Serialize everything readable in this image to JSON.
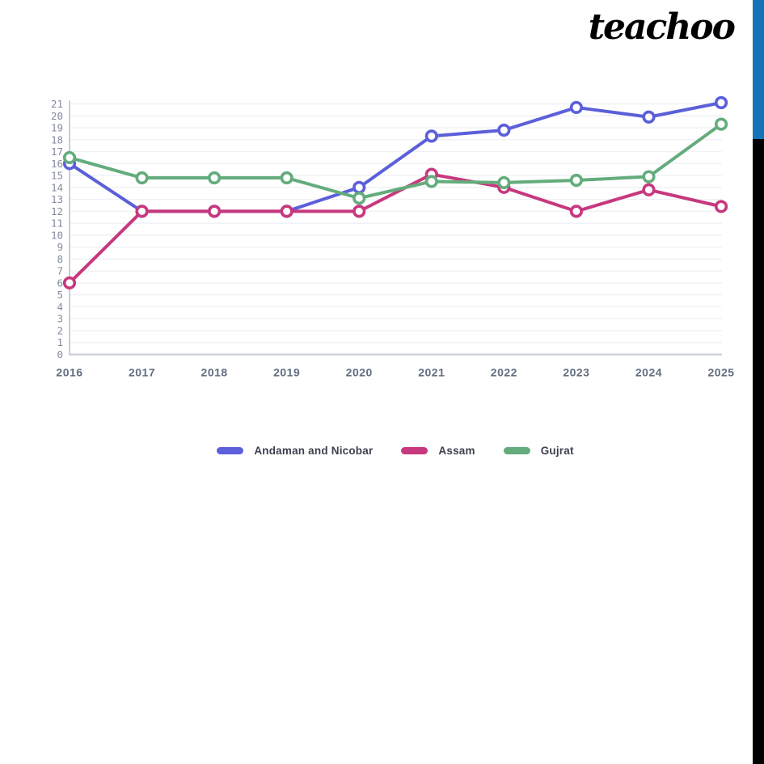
{
  "logo": {
    "text": "teachoo"
  },
  "chart_data": {
    "type": "line",
    "title": "",
    "xlabel": "",
    "ylabel": "",
    "x": [
      "2016",
      "2017",
      "2018",
      "2019",
      "2020",
      "2021",
      "2022",
      "2023",
      "2024",
      "2025"
    ],
    "series": [
      {
        "name": "Andaman and Nicobar",
        "color": "#5B5FD9",
        "values": [
          16,
          12,
          12,
          12,
          14,
          18.3,
          18.8,
          20.7,
          19.9,
          21.1
        ]
      },
      {
        "name": "Assam",
        "color": "#C7387E",
        "values": [
          6,
          12,
          12,
          12,
          12,
          15.1,
          14,
          12,
          13.8,
          12.4
        ]
      },
      {
        "name": "Gujrat",
        "color": "#64AC7C",
        "values": [
          16.5,
          14.8,
          14.8,
          14.8,
          13.1,
          14.5,
          14.4,
          14.6,
          14.9,
          19.3
        ]
      }
    ],
    "ylim": [
      0,
      21
    ],
    "yticks": [
      0,
      1,
      2,
      3,
      4,
      5,
      6,
      7,
      8,
      9,
      10,
      11,
      12,
      13,
      14,
      15,
      16,
      17,
      18,
      19,
      20,
      21
    ],
    "grid": "horizontal",
    "legend_position": "bottom",
    "marker": "open-circle"
  },
  "decor": {
    "sidebar_blue_color": "#1273B8",
    "sidebar_black_color": "#000000",
    "axis_color": "#c5cbd8",
    "grid_color": "#eff1f6"
  }
}
